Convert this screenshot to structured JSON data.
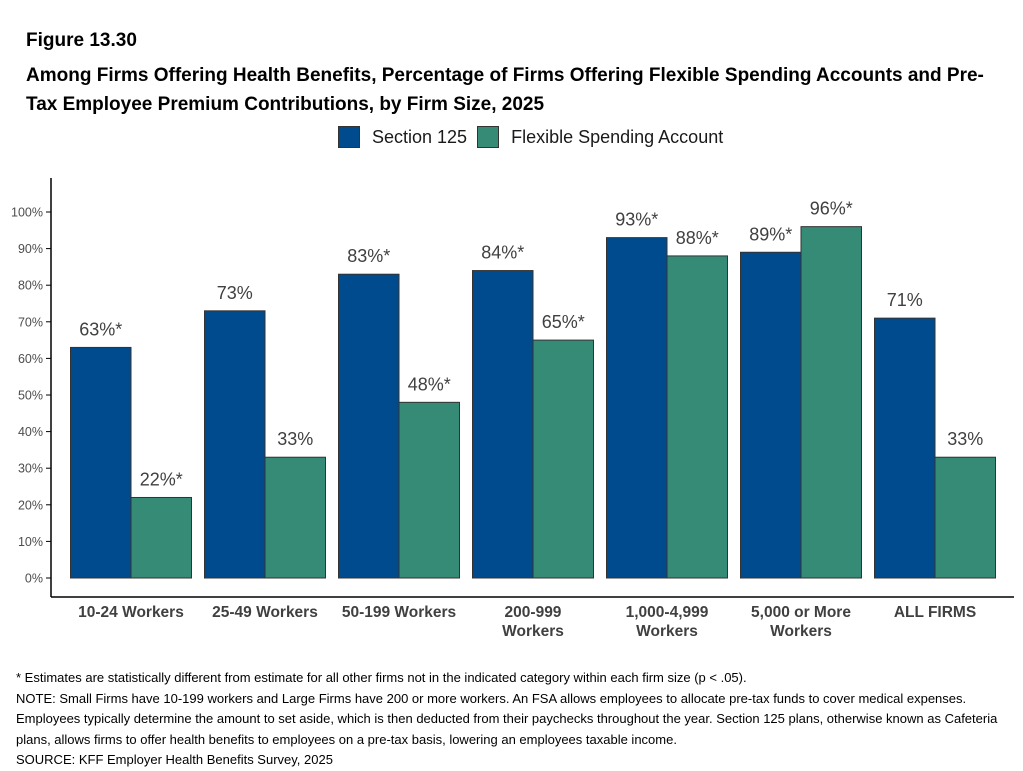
{
  "figure_number": "Figure 13.30",
  "title": "Among Firms Offering Health Benefits, Percentage of Firms Offering Flexible Spending Accounts and Pre-Tax Employee Premium Contributions, by Firm Size, 2025",
  "colors": {
    "section125": "#004b8d",
    "fsa": "#358b76",
    "axis": "#000000",
    "text": "#404040"
  },
  "chart_data": {
    "type": "bar",
    "categories": [
      "10-24 Workers",
      "25-49 Workers",
      "50-199 Workers",
      "200-999 Workers",
      "1,000-4,999 Workers",
      "5,000 or More Workers",
      "ALL FIRMS"
    ],
    "category_lines": [
      [
        "10-24 Workers"
      ],
      [
        "25-49 Workers"
      ],
      [
        "50-199 Workers"
      ],
      [
        "200-999",
        "Workers"
      ],
      [
        "1,000-4,999",
        "Workers"
      ],
      [
        "5,000 or More",
        "Workers"
      ],
      [
        "ALL FIRMS"
      ]
    ],
    "series": [
      {
        "name": "Section 125",
        "values": [
          63,
          73,
          83,
          84,
          93,
          89,
          71
        ],
        "labels": [
          "63%*",
          "73%",
          "83%*",
          "84%*",
          "93%*",
          "89%*",
          "71%"
        ]
      },
      {
        "name": "Flexible Spending Account",
        "values": [
          22,
          33,
          48,
          65,
          88,
          96,
          33
        ],
        "labels": [
          "22%*",
          "33%",
          "48%*",
          "65%*",
          "88%*",
          "96%*",
          "33%"
        ]
      }
    ],
    "ylim": [
      0,
      100
    ],
    "yticks": [
      0,
      10,
      20,
      30,
      40,
      50,
      60,
      70,
      80,
      90,
      100
    ],
    "ytick_labels": [
      "0%",
      "10%",
      "20%",
      "30%",
      "40%",
      "50%",
      "60%",
      "70%",
      "80%",
      "90%",
      "100%"
    ],
    "legend_position": "top",
    "grid": false
  },
  "notes": [
    "* Estimates are statistically different from estimate for all other firms not in the indicated category within each firm size (p < .05).",
    "NOTE: Small Firms have 10-199 workers and Large Firms have 200 or more workers.  An FSA allows employees to allocate pre-tax funds to cover medical expenses. Employees typically determine the amount to set aside, which is then deducted from their paychecks throughout the year. Section 125 plans, otherwise known as Cafeteria plans, allows firms to offer health benefits to employees on a pre-tax basis, lowering an employees taxable income.",
    "SOURCE: KFF Employer Health Benefits Survey, 2025"
  ]
}
